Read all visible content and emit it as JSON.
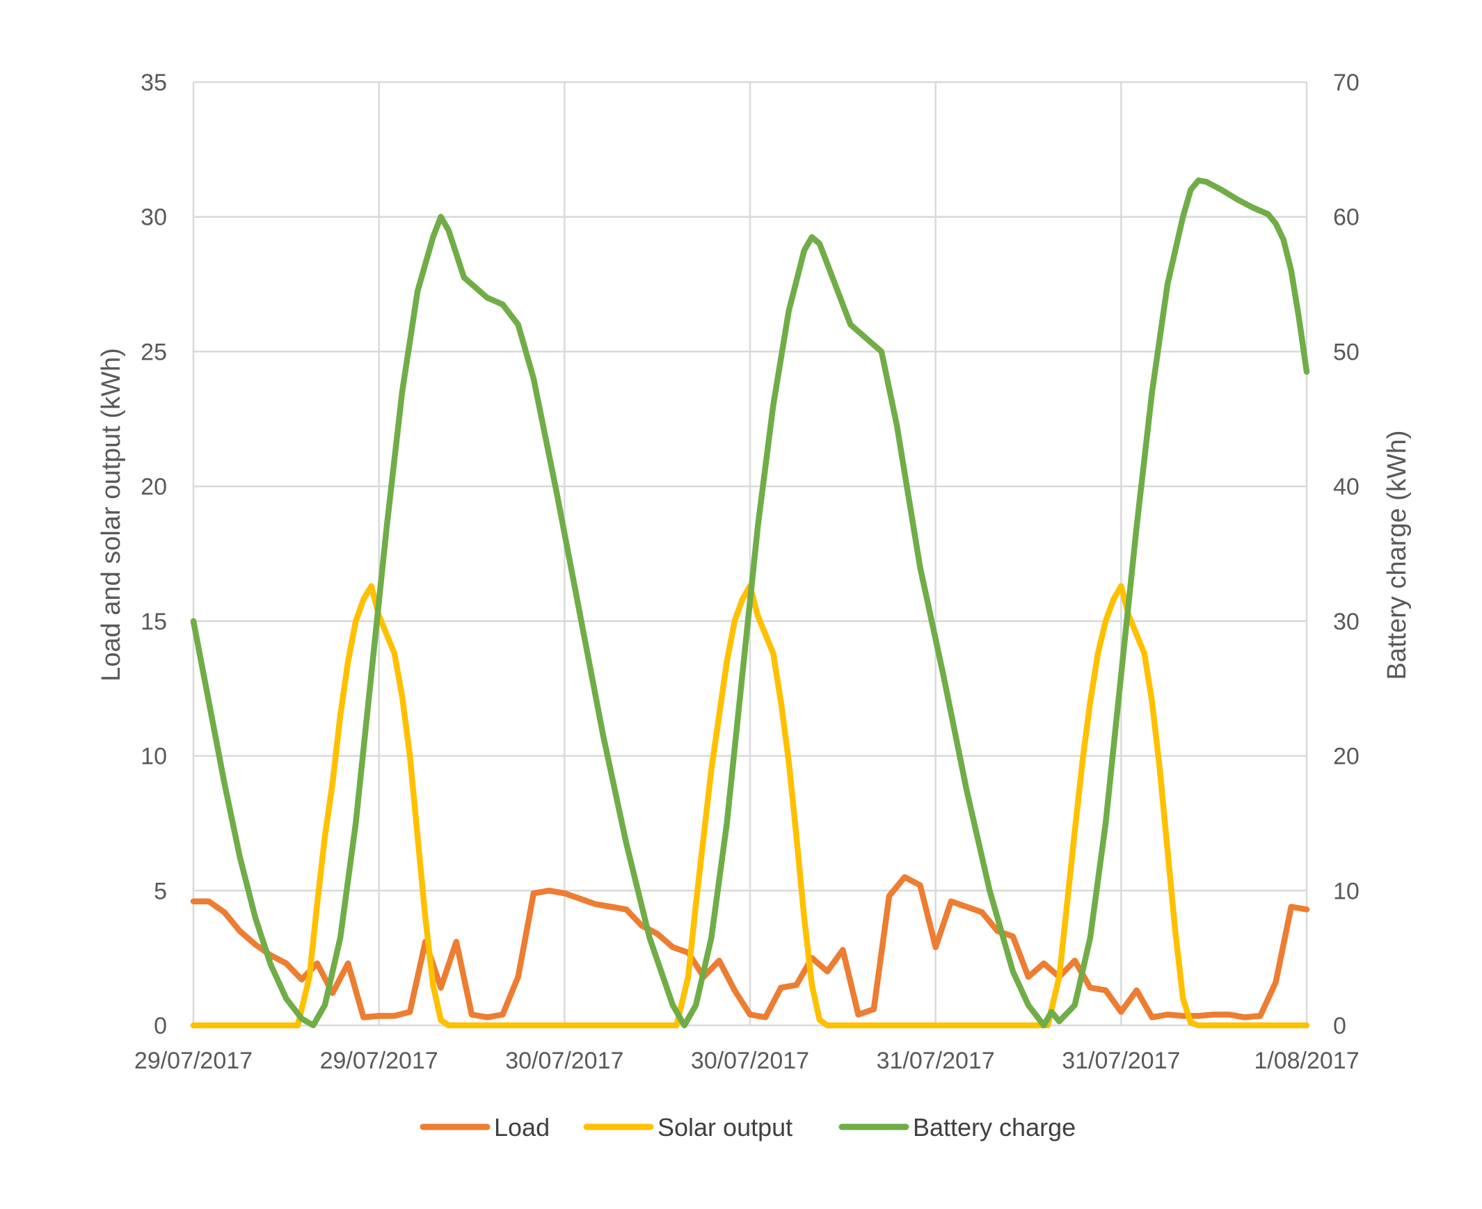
{
  "chart_data": {
    "type": "line",
    "title": "",
    "y_left": {
      "label": "Load and solar output (kWh)",
      "range": [
        0,
        35
      ],
      "ticks": [
        "0",
        "5",
        "10",
        "15",
        "20",
        "25",
        "30",
        "35"
      ]
    },
    "y_right": {
      "label": "Battery charge (kWh)",
      "range": [
        0,
        70
      ],
      "ticks": [
        "0",
        "10",
        "20",
        "30",
        "40",
        "50",
        "60",
        "70"
      ]
    },
    "x_range": [
      0,
      144
    ],
    "x_tick_labels": [
      "29/07/2017",
      "29/07/2017",
      "30/07/2017",
      "30/07/2017",
      "31/07/2017",
      "31/07/2017",
      "1/08/2017"
    ],
    "grid": true,
    "legend_position": "bottom",
    "series": [
      {
        "name": "Load",
        "axis": "left",
        "color": "#ED7D31",
        "points": [
          [
            0,
            4.6
          ],
          [
            2,
            4.6
          ],
          [
            4,
            4.2
          ],
          [
            6,
            3.5
          ],
          [
            8,
            3.0
          ],
          [
            10,
            2.6
          ],
          [
            12,
            2.3
          ],
          [
            14,
            1.7
          ],
          [
            16,
            2.3
          ],
          [
            18,
            1.2
          ],
          [
            20,
            2.3
          ],
          [
            22,
            0.3
          ],
          [
            24,
            0.35
          ],
          [
            26,
            0.35
          ],
          [
            28,
            0.5
          ],
          [
            30,
            3.1
          ],
          [
            32,
            1.4
          ],
          [
            34,
            3.1
          ],
          [
            36,
            0.4
          ],
          [
            38,
            0.3
          ],
          [
            40,
            0.4
          ],
          [
            42,
            1.8
          ],
          [
            44,
            4.9
          ],
          [
            46,
            5.0
          ],
          [
            48,
            4.9
          ],
          [
            50,
            4.7
          ],
          [
            52,
            4.5
          ],
          [
            54,
            4.4
          ],
          [
            56,
            4.3
          ],
          [
            58,
            3.7
          ],
          [
            60,
            3.4
          ],
          [
            62,
            2.9
          ],
          [
            64,
            2.7
          ],
          [
            66,
            1.8
          ],
          [
            68,
            2.4
          ],
          [
            70,
            1.3
          ],
          [
            72,
            0.4
          ],
          [
            74,
            0.3
          ],
          [
            76,
            1.4
          ],
          [
            78,
            1.5
          ],
          [
            80,
            2.5
          ],
          [
            82,
            2.0
          ],
          [
            84,
            2.8
          ],
          [
            86,
            0.4
          ],
          [
            88,
            0.6
          ],
          [
            90,
            4.8
          ],
          [
            92,
            5.5
          ],
          [
            94,
            5.2
          ],
          [
            96,
            2.9
          ],
          [
            98,
            4.6
          ],
          [
            100,
            4.4
          ],
          [
            102,
            4.2
          ],
          [
            104,
            3.5
          ],
          [
            106,
            3.3
          ],
          [
            108,
            1.8
          ],
          [
            110,
            2.3
          ],
          [
            112,
            1.8
          ],
          [
            114,
            2.4
          ],
          [
            116,
            1.4
          ],
          [
            118,
            1.3
          ],
          [
            120,
            0.5
          ],
          [
            122,
            1.3
          ],
          [
            124,
            0.3
          ],
          [
            126,
            0.4
          ],
          [
            128,
            0.35
          ],
          [
            130,
            0.35
          ],
          [
            132,
            0.4
          ],
          [
            134,
            0.4
          ],
          [
            136,
            0.3
          ],
          [
            138,
            0.35
          ],
          [
            140,
            1.6
          ],
          [
            142,
            4.4
          ],
          [
            144,
            4.3
          ]
        ]
      },
      {
        "name": "Solar output",
        "axis": "left",
        "color": "#FFC000",
        "points": [
          [
            0,
            0
          ],
          [
            13.5,
            0
          ],
          [
            15,
            1.8
          ],
          [
            16,
            4.5
          ],
          [
            17,
            7.0
          ],
          [
            18,
            9.0
          ],
          [
            19,
            11.5
          ],
          [
            20,
            13.5
          ],
          [
            21,
            15.0
          ],
          [
            22,
            15.8
          ],
          [
            23,
            16.3
          ],
          [
            24,
            15.2
          ],
          [
            25,
            14.5
          ],
          [
            26,
            13.8
          ],
          [
            27,
            12.2
          ],
          [
            28,
            10.0
          ],
          [
            29,
            7.0
          ],
          [
            30,
            4.0
          ],
          [
            31,
            1.5
          ],
          [
            32,
            0.2
          ],
          [
            33,
            0
          ],
          [
            62.5,
            0
          ],
          [
            64,
            1.8
          ],
          [
            65,
            4.5
          ],
          [
            66,
            7.0
          ],
          [
            67,
            9.5
          ],
          [
            68,
            11.5
          ],
          [
            69,
            13.5
          ],
          [
            70,
            15.0
          ],
          [
            71,
            15.8
          ],
          [
            72,
            16.3
          ],
          [
            73,
            15.2
          ],
          [
            74,
            14.5
          ],
          [
            75,
            13.8
          ],
          [
            76,
            12.0
          ],
          [
            77,
            9.8
          ],
          [
            78,
            7.0
          ],
          [
            79,
            4.0
          ],
          [
            80,
            1.5
          ],
          [
            81,
            0.2
          ],
          [
            82,
            0
          ],
          [
            110.5,
            0
          ],
          [
            112,
            1.8
          ],
          [
            113,
            4.5
          ],
          [
            114,
            7.2
          ],
          [
            115,
            9.8
          ],
          [
            116,
            12.0
          ],
          [
            117,
            13.8
          ],
          [
            118,
            15.0
          ],
          [
            119,
            15.8
          ],
          [
            120,
            16.3
          ],
          [
            121,
            15.2
          ],
          [
            122,
            14.5
          ],
          [
            123,
            13.8
          ],
          [
            124,
            12.0
          ],
          [
            125,
            9.5
          ],
          [
            126,
            6.5
          ],
          [
            127,
            3.5
          ],
          [
            128,
            1.0
          ],
          [
            129,
            0.1
          ],
          [
            130,
            0
          ],
          [
            144,
            0
          ]
        ]
      },
      {
        "name": "Battery charge",
        "axis": "right",
        "color": "#70AD47",
        "points": [
          [
            0,
            30
          ],
          [
            2,
            24
          ],
          [
            4,
            18
          ],
          [
            6,
            12.5
          ],
          [
            8,
            8
          ],
          [
            10,
            4.5
          ],
          [
            12,
            2
          ],
          [
            14,
            0.5
          ],
          [
            15.5,
            0
          ],
          [
            17,
            1.5
          ],
          [
            19,
            6.5
          ],
          [
            21,
            15
          ],
          [
            23,
            26
          ],
          [
            25,
            37
          ],
          [
            27,
            47
          ],
          [
            29,
            54.5
          ],
          [
            31,
            58.5
          ],
          [
            32,
            60
          ],
          [
            33,
            59
          ],
          [
            35,
            55.5
          ],
          [
            36,
            55
          ],
          [
            38,
            54
          ],
          [
            40,
            53.5
          ],
          [
            42,
            52
          ],
          [
            44,
            48
          ],
          [
            47,
            39.5
          ],
          [
            50,
            30.5
          ],
          [
            53,
            21.5
          ],
          [
            56,
            13.5
          ],
          [
            59,
            6.5
          ],
          [
            62,
            1.5
          ],
          [
            63.5,
            0
          ],
          [
            65,
            1.5
          ],
          [
            67,
            6.5
          ],
          [
            69,
            15
          ],
          [
            71,
            26
          ],
          [
            73,
            37
          ],
          [
            75,
            46
          ],
          [
            77,
            53
          ],
          [
            79,
            57.5
          ],
          [
            80,
            58.5
          ],
          [
            81,
            58
          ],
          [
            83,
            55
          ],
          [
            85,
            52
          ],
          [
            87,
            51
          ],
          [
            89,
            50
          ],
          [
            91,
            44.5
          ],
          [
            94,
            34
          ],
          [
            97,
            26
          ],
          [
            100,
            17.5
          ],
          [
            103,
            10
          ],
          [
            106,
            4
          ],
          [
            108,
            1.5
          ],
          [
            110,
            0
          ],
          [
            111,
            1
          ],
          [
            112,
            0.3
          ],
          [
            114,
            1.5
          ],
          [
            116,
            6.5
          ],
          [
            118,
            15
          ],
          [
            120,
            26
          ],
          [
            122,
            37
          ],
          [
            124,
            47
          ],
          [
            126,
            55
          ],
          [
            128,
            60
          ],
          [
            129,
            62
          ],
          [
            130,
            62.7
          ],
          [
            131,
            62.6
          ],
          [
            133,
            62
          ],
          [
            135,
            61.3
          ],
          [
            137,
            60.7
          ],
          [
            139,
            60.2
          ],
          [
            140,
            59.5
          ],
          [
            141,
            58.3
          ],
          [
            142,
            56
          ],
          [
            143,
            52.5
          ],
          [
            144,
            48.5
          ]
        ]
      }
    ]
  }
}
